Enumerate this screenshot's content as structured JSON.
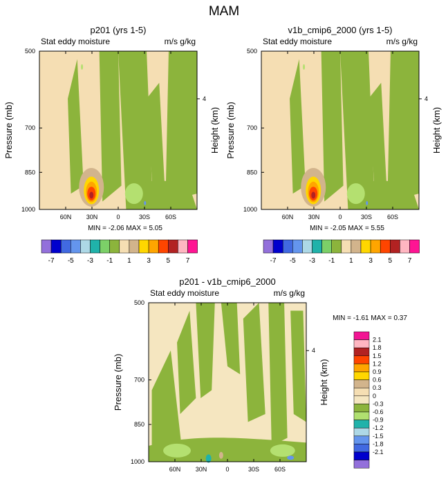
{
  "page_title": "MAM",
  "palette": {
    "neg": [
      "#9370db",
      "#0000cd",
      "#4169e1",
      "#6495ed",
      "#add8e6",
      "#20b2aa",
      "#7cd068",
      "#8cb43c"
    ],
    "pos": [
      "#f5deb3",
      "#d2b48c",
      "#ffd700",
      "#ffa500",
      "#ff4500",
      "#b22222",
      "#ffb6c1",
      "#ff1493"
    ],
    "zero": "#f5e6c0",
    "diff": [
      "#f21493",
      "#ffb6c1",
      "#b22222",
      "#ff4500",
      "#ffa500",
      "#ffd700",
      "#d2b48c",
      "#f5deb3",
      "#f5e6c0",
      "#8cb43c",
      "#b0e070",
      "#20b2aa",
      "#add8e6",
      "#6495ed",
      "#4169e1",
      "#0000cd",
      "#9370db"
    ]
  },
  "panels": [
    {
      "title": "p201 (yrs 1-5)",
      "left_label": "Stat eddy moisture",
      "right_label": "m/s g/kg",
      "ylabel": "Pressure (mb)",
      "y2label": "Height (km)",
      "stats": "MIN = -2.06   MAX =  5.05"
    },
    {
      "title": "v1b_cmip6_2000 (yrs 1-5)",
      "left_label": "Stat eddy moisture",
      "right_label": "m/s g/kg",
      "ylabel": "Pressure (mb)",
      "y2label": "Height (km)",
      "stats": "MIN = -2.05   MAX =  5.55"
    },
    {
      "title": "p201 - v1b_cmip6_2000",
      "left_label": "Stat eddy moisture",
      "right_label": "m/s g/kg",
      "ylabel": "Pressure (mb)",
      "y2label": "Height (km)",
      "stats": "MIN = -1.61   MAX =  0.37"
    }
  ],
  "chart_data": {
    "type": "heatmap",
    "title": "MAM",
    "xaxis": {
      "ticks": [
        "60N",
        "30N",
        "0",
        "30S",
        "60S"
      ],
      "range": [
        "90N",
        "90S"
      ]
    },
    "yaxis": {
      "label": "Pressure (mb)",
      "ticks": [
        "500",
        "700",
        "850",
        "1000"
      ],
      "range": [
        500,
        1000
      ]
    },
    "y2axis": {
      "label": "Height (km)",
      "ticks": [
        "4"
      ]
    },
    "colorbar_top": {
      "levels": [
        -8,
        -7,
        -6,
        -5,
        -4,
        -3,
        -2,
        -1,
        0,
        1,
        2,
        3,
        4,
        5,
        6,
        7,
        8
      ],
      "labels": [
        "-7",
        "-5",
        "-3",
        "-1",
        "1",
        "3",
        "5",
        "7"
      ]
    },
    "colorbar_diff": {
      "labels": [
        "2.1",
        "1.8",
        "1.5",
        "1.2",
        "0.9",
        "0.6",
        "0.3",
        "0",
        "-0.3",
        "-0.6",
        "-0.9",
        "-1.2",
        "-1.5",
        "-1.8",
        "-2.1"
      ]
    }
  }
}
